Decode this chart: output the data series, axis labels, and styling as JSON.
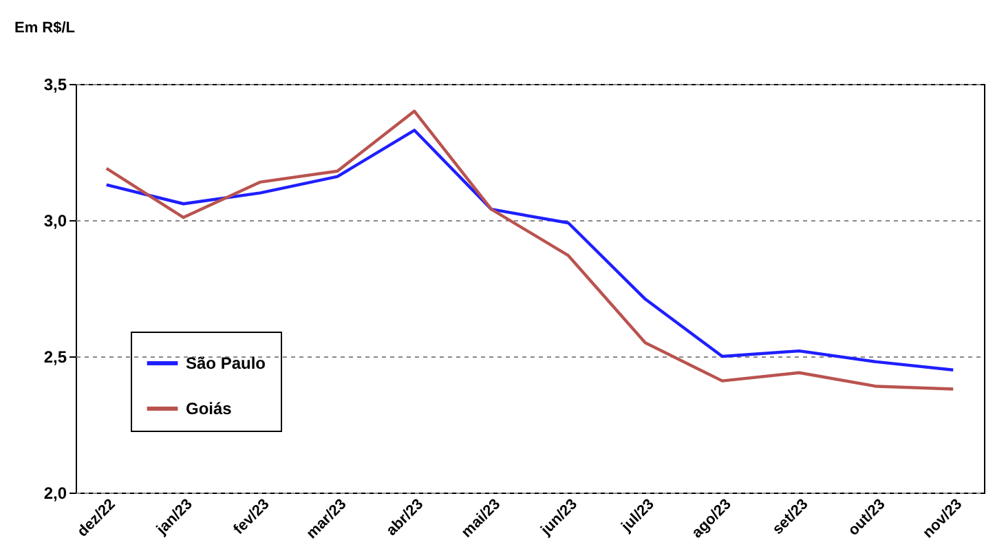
{
  "chart_data": {
    "type": "line",
    "ylabel": "Em R$/L",
    "categories": [
      "dez/22",
      "jan/23",
      "fev/23",
      "mar/23",
      "abr/23",
      "mai/23",
      "jun/23",
      "jul/23",
      "ago/23",
      "set/23",
      "out/23",
      "nov/23"
    ],
    "series": [
      {
        "name": "São Paulo",
        "color": "#1f1fff",
        "values": [
          3.13,
          3.06,
          3.1,
          3.16,
          3.33,
          3.04,
          2.99,
          2.71,
          2.5,
          2.52,
          2.48,
          2.45
        ]
      },
      {
        "name": "Goiás",
        "color": "#b9534f",
        "values": [
          3.19,
          3.01,
          3.14,
          3.18,
          3.4,
          3.04,
          2.87,
          2.55,
          2.41,
          2.44,
          2.39,
          2.38
        ]
      }
    ],
    "ylim": [
      2.0,
      3.5
    ],
    "yticks": [
      {
        "value": 2.0,
        "label": "2,0"
      },
      {
        "value": 2.5,
        "label": "2,5"
      },
      {
        "value": 3.0,
        "label": "3,0"
      },
      {
        "value": 3.5,
        "label": "3,5"
      }
    ],
    "grid": "y",
    "legend": "left",
    "marker": "none",
    "line_style": "solid"
  }
}
